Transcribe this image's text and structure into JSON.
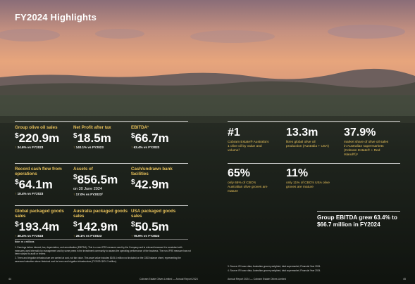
{
  "title": "FY2024 Highlights",
  "left_stats": [
    {
      "label": "Group olive oil sales",
      "currency": "$",
      "value": "220.9m",
      "change": "34.6% vs FY2023"
    },
    {
      "label": "Net Profit after tax",
      "currency": "$",
      "value": "18.5m",
      "change": "140.1% vs FY2023"
    },
    {
      "label": "EBITDA¹",
      "currency": "$",
      "value": "66.7m",
      "change": "63.4% vs FY2023"
    },
    {
      "label": "Record cash flow from operations",
      "currency": "$",
      "value": "64.1m",
      "change": "18.4% vs FY2023"
    },
    {
      "label": "Assets of",
      "currency": "$",
      "value": "856.5m",
      "sub": "on 30 June 2024",
      "change": "17.0% vs FY2023²"
    },
    {
      "label": "Cash/undrawn bank facilities",
      "currency": "$",
      "value": "42.9m",
      "change": ""
    },
    {
      "label": "Global packaged goods sales",
      "currency": "$",
      "value": "193.4m",
      "change": "38.4% vs FY2023"
    },
    {
      "label": "Australia packaged goods sales",
      "currency": "$",
      "value": "142.9m",
      "change": "28.1% vs FY2023"
    },
    {
      "label": "USA packaged goods sales",
      "currency": "$",
      "value": "50.5m",
      "change": "78.9% vs FY2023"
    }
  ],
  "right_stats": [
    {
      "value": "#1",
      "label": "Cobram Estate® Australia's 1 olive oil by value and volume³"
    },
    {
      "value": "13.3m",
      "label": "litres global olive oil production (Australia + USA)"
    },
    {
      "value": "37.9%",
      "label": "market share of olive oil sales in Australian supermarkets (Cobram Estate® + Red Island®)⁴"
    },
    {
      "value": "65%",
      "label": "only 65% of CBO's Australian olive groves are mature"
    },
    {
      "value": "11%",
      "label": "only 11% of CBO's USA olive groves are mature"
    }
  ],
  "callout": "Group EBITDA grew 63.4% to $66.7 million in FY2024",
  "note_title": "Note: m = millions",
  "notes_left": [
    "1.  Earnings before interest, tax, depreciation, and amortisation (EBITDA). This is a non-IFRS measure used by the Company and is relevant because it is consistent with measures used internally by management and by some peers in the investment community to assess the operating performance of the business. The non-IFRS measure has not been subject to audit or review.",
    "2.  Trees and irrigation infrastructure are carried at cost, not fair value. This asset value includes $105.4 million not included on the CBO balance sheet, representing the assessed valuation above historical cost for trees and irrigation infrastructure (FY2023: $101.3 million)."
  ],
  "notes_right": [
    "3.  Source: IRI scan data, Australian grocery weighted, total supermarket, Financial Year 2024.",
    "4.  Source: IRI scan data, Australian grocery weighted, total supermarket, Financial Year 2024."
  ],
  "footer": {
    "left_page": "44",
    "left_text": "Cobram Estate Olives Limited — Annual Report 2024",
    "right_text": "Annual Report 2024 — Cobram Estate Olives Limited",
    "right_page": "45"
  }
}
